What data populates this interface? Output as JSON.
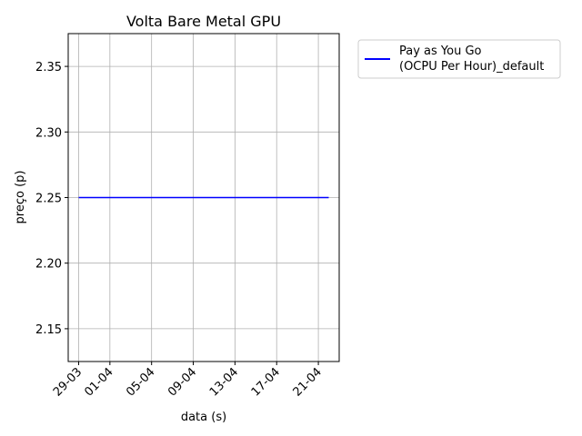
{
  "chart_data": {
    "type": "line",
    "title": "Volta Bare Metal GPU",
    "xlabel": "data (s)",
    "ylabel": "preço (p)",
    "x_ticks": [
      "29-03",
      "01-04",
      "05-04",
      "09-04",
      "13-04",
      "17-04",
      "21-04"
    ],
    "y_ticks": [
      "2.15",
      "2.20",
      "2.25",
      "2.30",
      "2.35"
    ],
    "ylim": [
      2.125,
      2.375
    ],
    "xlim": [
      "2023-03-28",
      "2023-04-23"
    ],
    "grid": true,
    "legend_placement": "outside-upper-right",
    "series": [
      {
        "name_lines": [
          "Pay as You Go",
          "(OCPU Per Hour)_default"
        ],
        "color": "#0000ff",
        "points": [
          {
            "x": "2023-03-29",
            "y": 2.25
          },
          {
            "x": "2023-04-22",
            "y": 2.25
          }
        ]
      }
    ]
  }
}
